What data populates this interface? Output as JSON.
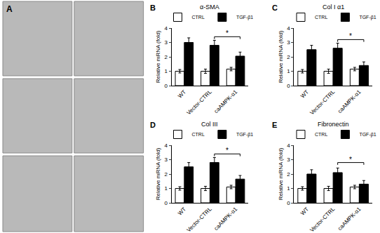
{
  "image_panel": {
    "panel_label": "A"
  },
  "chart_data": [
    {
      "type": "bar",
      "panel_label": "B",
      "title": "α-SMA",
      "y_label": "Relative mRNA (fold)",
      "categories": [
        "WT",
        "Vector-CTRL",
        "caAMPK-α1"
      ],
      "series": [
        {
          "name": "CTRL",
          "color": "#ffffff",
          "values": [
            1.0,
            1.0,
            1.15
          ],
          "errors": [
            0.12,
            0.15,
            0.12
          ]
        },
        {
          "name": "TGF-β1",
          "color": "#000000",
          "values": [
            3.0,
            2.8,
            2.05
          ],
          "errors": [
            0.32,
            0.35,
            0.28
          ]
        }
      ],
      "ylim": [
        0,
        4
      ],
      "yticks": [
        0,
        1,
        2,
        3,
        4
      ],
      "grid": false,
      "legend": "top",
      "annotations": [
        {
          "text": "*",
          "from": "Vector-CTRL",
          "to": "caAMPK-α1",
          "y": 3.4
        }
      ]
    },
    {
      "type": "bar",
      "panel_label": "C",
      "title": "Col I α1",
      "y_label": "Relative mRNA (fold)",
      "categories": [
        "WT",
        "Vector-CTRL",
        "caAMPK-α1"
      ],
      "series": [
        {
          "name": "CTRL",
          "color": "#ffffff",
          "values": [
            1.0,
            1.0,
            1.15
          ],
          "errors": [
            0.12,
            0.15,
            0.12
          ]
        },
        {
          "name": "TGF-β1",
          "color": "#000000",
          "values": [
            2.5,
            2.6,
            1.4
          ],
          "errors": [
            0.3,
            0.35,
            0.25
          ]
        }
      ],
      "ylim": [
        0,
        4
      ],
      "yticks": [
        0,
        1,
        2,
        3,
        4
      ],
      "grid": false,
      "legend": "top",
      "annotations": [
        {
          "text": "*",
          "from": "Vector-CTRL",
          "to": "caAMPK-α1",
          "y": 3.2
        }
      ]
    },
    {
      "type": "bar",
      "panel_label": "D",
      "title": "Col III",
      "y_label": "Relative mRNA (fold)",
      "categories": [
        "WT",
        "Vector-CTRL",
        "caAMPK-α1"
      ],
      "series": [
        {
          "name": "CTRL",
          "color": "#ffffff",
          "values": [
            1.0,
            1.0,
            1.1
          ],
          "errors": [
            0.12,
            0.15,
            0.12
          ]
        },
        {
          "name": "TGF-β1",
          "color": "#000000",
          "values": [
            2.5,
            2.8,
            1.65
          ],
          "errors": [
            0.3,
            0.35,
            0.25
          ]
        }
      ],
      "ylim": [
        0,
        4
      ],
      "yticks": [
        0,
        1,
        2,
        3,
        4
      ],
      "grid": false,
      "legend": "top",
      "annotations": [
        {
          "text": "*",
          "from": "Vector-CTRL",
          "to": "caAMPK-α1",
          "y": 3.4
        }
      ]
    },
    {
      "type": "bar",
      "panel_label": "E",
      "title": "Fibronectin",
      "y_label": "Relative mRNA (fold)",
      "categories": [
        "WT",
        "Vector-CTRL",
        "caAMPK-α1"
      ],
      "series": [
        {
          "name": "CTRL",
          "color": "#ffffff",
          "values": [
            1.0,
            1.0,
            1.1
          ],
          "errors": [
            0.12,
            0.15,
            0.12
          ]
        },
        {
          "name": "TGF-β1",
          "color": "#000000",
          "values": [
            2.0,
            2.1,
            1.3
          ],
          "errors": [
            0.3,
            0.32,
            0.25
          ]
        }
      ],
      "ylim": [
        0,
        4
      ],
      "yticks": [
        0,
        1,
        2,
        3,
        4
      ],
      "grid": false,
      "legend": "top",
      "annotations": [
        {
          "text": "*",
          "from": "Vector-CTRL",
          "to": "caAMPK-α1",
          "y": 2.8
        }
      ]
    }
  ]
}
